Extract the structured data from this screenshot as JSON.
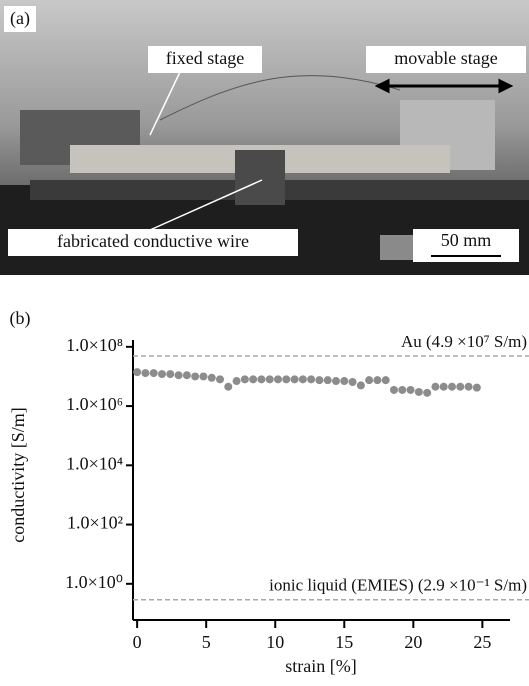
{
  "photo": {
    "panel_label": "(a)",
    "labels": [
      "fixed stage",
      "movable stage",
      "fabricated conductive wire"
    ],
    "scale_bar": "50 mm"
  },
  "chart_data": {
    "type": "scatter",
    "panel_label": "(b)",
    "x_label": "strain [%]",
    "y_label": "conductivity [S/m]",
    "x": [
      0,
      0.6,
      1.2,
      1.8,
      2.4,
      3,
      3.6,
      4.2,
      4.8,
      5.4,
      6,
      6.6,
      7.2,
      7.8,
      8.4,
      9,
      9.6,
      10.2,
      10.8,
      11.4,
      12,
      12.6,
      13.2,
      13.8,
      14.4,
      15,
      15.6,
      16.2,
      16.8,
      17.4,
      18,
      18.6,
      19.2,
      19.8,
      20.4,
      21,
      21.6,
      22.2,
      22.8,
      23.4,
      24,
      24.6
    ],
    "values": [
      14000000,
      13000000,
      13000000,
      12000000,
      12000000,
      11000000,
      11000000,
      10000000,
      10000000,
      9000000,
      8000000,
      4500000,
      7000000,
      8000000,
      8000000,
      8000000,
      8000000,
      8000000,
      8000000,
      8000000,
      8000000,
      8000000,
      7500000,
      7500000,
      7000000,
      7000000,
      6500000,
      5000000,
      7500000,
      7500000,
      7500000,
      3500000,
      3500000,
      3500000,
      3000000,
      2800000,
      4500000,
      4500000,
      4500000,
      4500000,
      4500000,
      4200000
    ],
    "color": "#8c8c8c",
    "xlim": [
      -0.3,
      27
    ],
    "xticks": [
      0,
      5,
      10,
      15,
      20,
      25
    ],
    "ylim": [
      0.06,
      170000000
    ],
    "yscale": "log",
    "yticks": [
      {
        "value": 1,
        "label": "1.0×10⁰"
      },
      {
        "value": 100,
        "label": "1.0×10²"
      },
      {
        "value": 10000,
        "label": "1.0×10⁴"
      },
      {
        "value": 1000000,
        "label": "1.0×10⁶"
      },
      {
        "value": 100000000,
        "label": "1.0×10⁸"
      }
    ],
    "reference_lines": [
      {
        "value": 49000000,
        "label": "Au (4.9 ×10⁷ S/m)"
      },
      {
        "value": 0.29,
        "label": "ionic liquid (EMIES) (2.9 ×10⁻¹ S/m)"
      }
    ],
    "reference_color": "#a8a8a8"
  }
}
